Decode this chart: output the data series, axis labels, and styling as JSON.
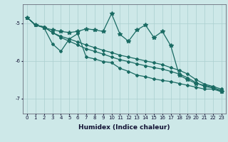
{
  "xlabel": "Humidex (Indice chaleur)",
  "xlim": [
    -0.5,
    23.5
  ],
  "ylim": [
    -7.4,
    -4.5
  ],
  "yticks": [
    -7,
    -6,
    -5
  ],
  "xticks": [
    0,
    1,
    2,
    3,
    4,
    5,
    6,
    7,
    8,
    9,
    10,
    11,
    12,
    13,
    14,
    15,
    16,
    17,
    18,
    19,
    20,
    21,
    22,
    23
  ],
  "bg_color": "#cde8e8",
  "line_color": "#1a6b63",
  "grid_color": "#aacfcf",
  "series_straight1_x": [
    0,
    1,
    2,
    3,
    4,
    5,
    6,
    7,
    8,
    9,
    10,
    11,
    12,
    13,
    14,
    15,
    16,
    17,
    18,
    19,
    20,
    21,
    22,
    23
  ],
  "series_straight1_y": [
    -4.85,
    -5.05,
    -5.1,
    -5.25,
    -5.35,
    -5.42,
    -5.5,
    -5.58,
    -5.65,
    -5.72,
    -5.78,
    -5.85,
    -5.9,
    -5.95,
    -6.0,
    -6.05,
    -6.1,
    -6.18,
    -6.25,
    -6.35,
    -6.5,
    -6.62,
    -6.68,
    -6.75
  ],
  "series_straight2_x": [
    0,
    1,
    2,
    3,
    4,
    5,
    6,
    7,
    8,
    9,
    10,
    11,
    12,
    13,
    14,
    15,
    16,
    17,
    18,
    19,
    20,
    21,
    22,
    23
  ],
  "series_straight2_y": [
    -4.85,
    -5.05,
    -5.1,
    -5.25,
    -5.38,
    -5.48,
    -5.58,
    -5.68,
    -5.75,
    -5.82,
    -5.9,
    -5.97,
    -6.02,
    -6.08,
    -6.13,
    -6.18,
    -6.22,
    -6.28,
    -6.35,
    -6.45,
    -6.58,
    -6.68,
    -6.72,
    -6.78
  ],
  "series_zigzag_x": [
    0,
    1,
    2,
    3,
    4,
    5,
    6,
    7,
    8,
    9,
    10,
    11,
    12,
    13,
    14,
    15,
    16,
    17,
    18,
    19,
    20,
    21,
    22,
    23
  ],
  "series_zigzag_y": [
    -4.85,
    -5.05,
    -5.12,
    -5.18,
    -5.22,
    -5.25,
    -5.22,
    -5.15,
    -5.18,
    -5.22,
    -4.75,
    -5.3,
    -5.48,
    -5.18,
    -5.05,
    -5.38,
    -5.22,
    -5.6,
    -6.38,
    -6.5,
    -6.6,
    -6.65,
    -6.7,
    -6.82
  ],
  "series_dip_x": [
    0,
    1,
    2,
    3,
    4,
    5,
    6,
    7,
    8,
    9,
    10,
    11,
    12,
    13,
    14,
    15,
    16,
    17,
    18,
    19,
    20,
    21,
    22,
    23
  ],
  "series_dip_y": [
    -4.85,
    -5.05,
    -5.12,
    -5.55,
    -5.75,
    -5.42,
    -5.28,
    -5.9,
    -5.95,
    -6.02,
    -6.05,
    -6.2,
    -6.28,
    -6.38,
    -6.42,
    -6.48,
    -6.52,
    -6.55,
    -6.6,
    -6.65,
    -6.7,
    -6.75,
    -6.75,
    -6.82
  ]
}
